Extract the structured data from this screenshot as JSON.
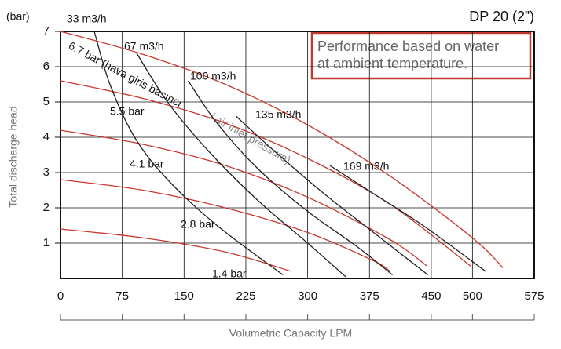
{
  "chart_data": {
    "type": "line",
    "title": "DP 20 (2”)",
    "note_lines": [
      "Performance based on water",
      "at ambient temperature."
    ],
    "y_unit": "(bar)",
    "ylabel": "Total discharge head",
    "xlabel": "Volumetric Capacity LPM",
    "xlim": [
      0,
      575
    ],
    "xticks": [
      0,
      75,
      150,
      225,
      300,
      375,
      450,
      500,
      575
    ],
    "ylim": [
      0,
      7
    ],
    "yticks": [
      1,
      2,
      3,
      4,
      5,
      6,
      7
    ],
    "grid": true,
    "annotation": "/ air inlet pressure)",
    "series": [
      {
        "name": "6.7 bar (hava giris basıncı",
        "color": "#c8372d",
        "x": [
          0,
          100,
          200,
          300,
          400,
          500,
          537
        ],
        "values": [
          7,
          6.35,
          5.5,
          4.35,
          2.9,
          1.15,
          0.3
        ]
      },
      {
        "name": "5.5 bar",
        "color": "#c8372d",
        "x": [
          0,
          100,
          200,
          300,
          400,
          498
        ],
        "values": [
          5.6,
          5.1,
          4.4,
          3.4,
          2.1,
          0.35
        ]
      },
      {
        "name": "4.1 bar",
        "color": "#c8372d",
        "x": [
          0,
          100,
          200,
          300,
          400,
          445
        ],
        "values": [
          4.2,
          3.8,
          3.2,
          2.3,
          1.1,
          0.35
        ]
      },
      {
        "name": "2.8 bar",
        "color": "#c8372d",
        "x": [
          0,
          100,
          200,
          300,
          380,
          400
        ],
        "values": [
          2.8,
          2.5,
          2,
          1.3,
          0.5,
          0.2
        ]
      },
      {
        "name": "1.4 bar",
        "color": "#c8372d",
        "x": [
          0,
          100,
          200,
          280
        ],
        "values": [
          1.4,
          1.15,
          0.75,
          0.2
        ]
      },
      {
        "name": "33 m3/h",
        "color": "#222222",
        "x": [
          41,
          60,
          90,
          130,
          190,
          270
        ],
        "values": [
          7,
          5.5,
          4,
          2.8,
          1.5,
          0.1
        ]
      },
      {
        "name": "67 m3/h",
        "color": "#222222",
        "x": [
          92,
          130,
          180,
          240,
          300,
          346
        ],
        "values": [
          6.4,
          5,
          3.6,
          2.2,
          1,
          0.05
        ]
      },
      {
        "name": "100 m3/h",
        "color": "#222222",
        "x": [
          155,
          190,
          240,
          300,
          360,
          403
        ],
        "values": [
          5.6,
          4.4,
          3.1,
          1.9,
          0.9,
          0.1
        ]
      },
      {
        "name": "135 m3/h",
        "color": "#222222",
        "x": [
          213,
          260,
          320,
          380,
          446
        ],
        "values": [
          4.6,
          3.6,
          2.4,
          1.3,
          0.1
        ]
      },
      {
        "name": "169 m3/h",
        "color": "#222222",
        "x": [
          327,
          380,
          440,
          516
        ],
        "values": [
          3.2,
          2.4,
          1.5,
          0.2
        ]
      }
    ]
  }
}
